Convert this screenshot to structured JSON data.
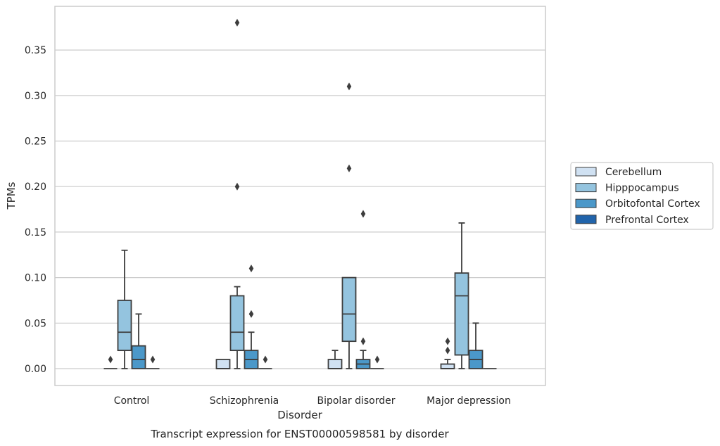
{
  "caption": "Transcript expression for ENST00000598581 by disorder",
  "colors": {
    "Cerebellum": "#d0e1f2",
    "Hipppocampus": "#94c4df",
    "Orbitofontal Cortex": "#4b98c9",
    "Prefrontal Cortex": "#2164ab",
    "edge": "#3d3d3d",
    "grid": "#cccccc"
  },
  "chart_data": {
    "type": "boxplot",
    "xlabel": "Disorder",
    "ylabel": "TPMs",
    "ylim": [
      -0.018,
      0.398
    ],
    "yticks": [
      0.0,
      0.05,
      0.1,
      0.15,
      0.2,
      0.25,
      0.3,
      0.35
    ],
    "ytick_labels": [
      "0.00",
      "0.05",
      "0.10",
      "0.15",
      "0.20",
      "0.25",
      "0.30",
      "0.35"
    ],
    "categories": [
      "Control",
      "Schizophrenia",
      "Bipolar disorder",
      "Major depression"
    ],
    "grid": "horizontal",
    "legend_position": "right",
    "series": [
      {
        "name": "Cerebellum",
        "boxes": [
          {
            "q1": 0,
            "median": 0,
            "q3": 0,
            "whislo": 0,
            "whishi": 0,
            "fliers": [
              0.01
            ]
          },
          {
            "q1": 0,
            "median": 0,
            "q3": 0.01,
            "whislo": 0,
            "whishi": 0.01,
            "fliers": []
          },
          {
            "q1": 0,
            "median": 0,
            "q3": 0.01,
            "whislo": 0,
            "whishi": 0.02,
            "fliers": []
          },
          {
            "q1": 0,
            "median": 0,
            "q3": 0.005,
            "whislo": 0,
            "whishi": 0.01,
            "fliers": [
              0.02,
              0.03
            ]
          }
        ]
      },
      {
        "name": "Hipppocampus",
        "boxes": [
          {
            "q1": 0.02,
            "median": 0.04,
            "q3": 0.075,
            "whislo": 0,
            "whishi": 0.13,
            "fliers": []
          },
          {
            "q1": 0.02,
            "median": 0.04,
            "q3": 0.08,
            "whislo": 0,
            "whishi": 0.09,
            "fliers": [
              0.2,
              0.38
            ]
          },
          {
            "q1": 0.03,
            "median": 0.06,
            "q3": 0.1,
            "whislo": 0,
            "whishi": 0.1,
            "fliers": [
              0.22,
              0.31
            ]
          },
          {
            "q1": 0.015,
            "median": 0.08,
            "q3": 0.105,
            "whislo": 0,
            "whishi": 0.16,
            "fliers": []
          }
        ]
      },
      {
        "name": "Orbitofontal Cortex",
        "boxes": [
          {
            "q1": 0,
            "median": 0.01,
            "q3": 0.025,
            "whislo": 0,
            "whishi": 0.06,
            "fliers": []
          },
          {
            "q1": 0,
            "median": 0.01,
            "q3": 0.02,
            "whislo": 0,
            "whishi": 0.04,
            "fliers": [
              0.06,
              0.11
            ]
          },
          {
            "q1": 0,
            "median": 0.005,
            "q3": 0.01,
            "whislo": 0,
            "whishi": 0.02,
            "fliers": [
              0.03,
              0.17
            ]
          },
          {
            "q1": 0,
            "median": 0.01,
            "q3": 0.02,
            "whislo": 0,
            "whishi": 0.05,
            "fliers": []
          }
        ]
      },
      {
        "name": "Prefrontal Cortex",
        "boxes": [
          {
            "q1": 0,
            "median": 0,
            "q3": 0,
            "whislo": 0,
            "whishi": 0,
            "fliers": [
              0.01
            ]
          },
          {
            "q1": 0,
            "median": 0,
            "q3": 0,
            "whislo": 0,
            "whishi": 0,
            "fliers": [
              0.01
            ]
          },
          {
            "q1": 0,
            "median": 0,
            "q3": 0,
            "whislo": 0,
            "whishi": 0,
            "fliers": [
              0.01
            ]
          },
          {
            "q1": 0,
            "median": 0,
            "q3": 0,
            "whislo": 0,
            "whishi": 0,
            "fliers": []
          }
        ]
      }
    ]
  }
}
